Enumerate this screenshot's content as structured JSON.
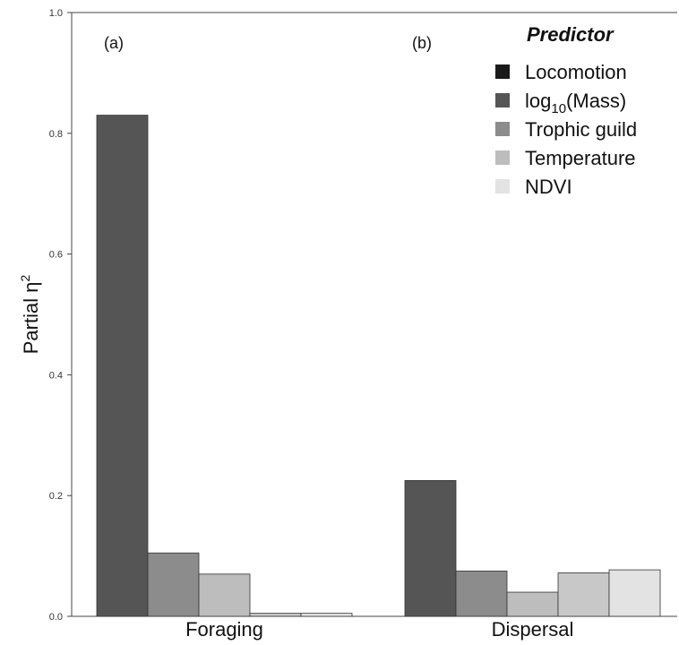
{
  "chart_data": {
    "type": "bar",
    "ylabel": "Partial η",
    "ylabel_superscript": "2",
    "ylim": [
      0,
      1.0
    ],
    "yticks": [
      "0.0",
      "0.2",
      "0.4",
      "0.6",
      "0.8",
      "1.0"
    ],
    "categories": [
      "Foraging",
      "Dispersal"
    ],
    "panel_labels": [
      "(a)",
      "(b)"
    ],
    "legend": {
      "title": "Predictor",
      "position": "top-right"
    },
    "series": [
      {
        "name": "Locomotion",
        "color": "#1a1a1a",
        "values": [
          0.83,
          0.225
        ]
      },
      {
        "name": "log10(Mass)",
        "name_base": "log",
        "name_sub": "10",
        "name_rest": "(Mass)",
        "color": "#555555",
        "values": [
          0.105,
          0.075
        ]
      },
      {
        "name": "Trophic guild",
        "color": "#8c8c8c",
        "values": [
          0.07,
          0.04
        ]
      },
      {
        "name": "Temperature",
        "color": "#bdbdbd",
        "values": [
          0.005,
          0.072
        ]
      },
      {
        "name": "NDVI",
        "color": "#e3e3e3",
        "values": [
          0.005,
          0.077
        ]
      }
    ],
    "bar_colors": [
      "#555555",
      "#8c8c8c",
      "#bdbdbd",
      "#c8c8c8",
      "#e3e3e3"
    ]
  }
}
